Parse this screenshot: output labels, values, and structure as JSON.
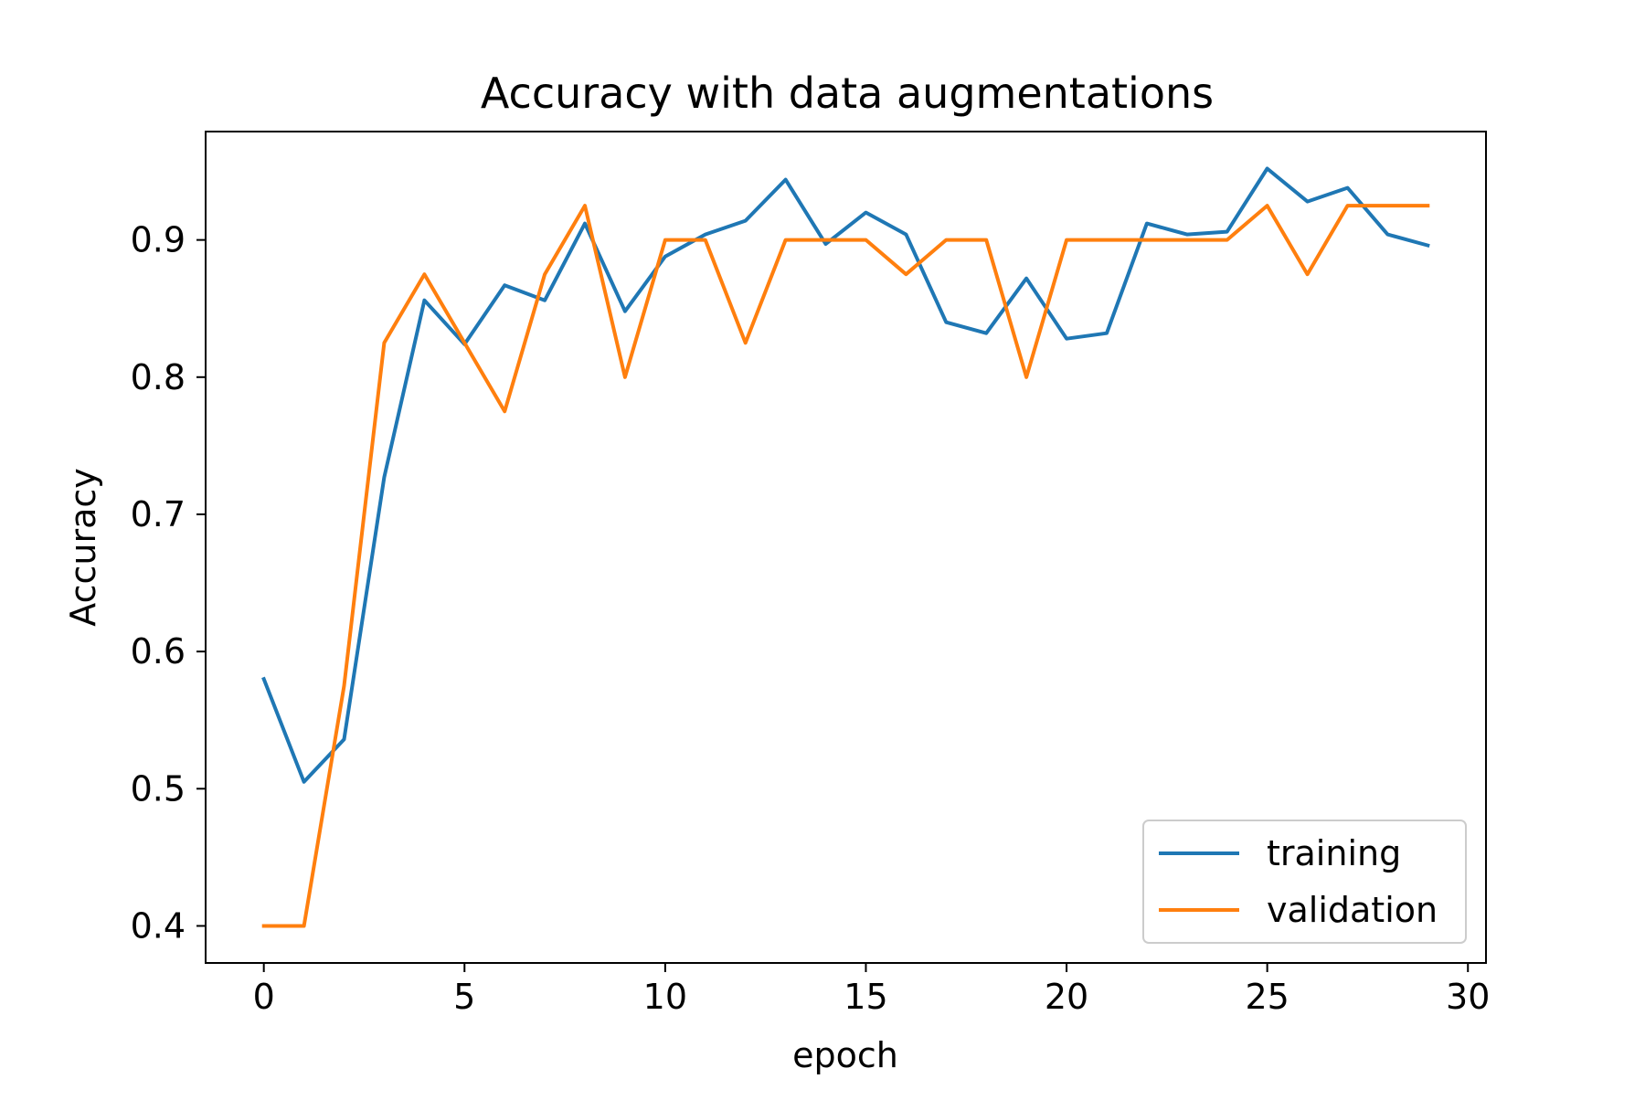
{
  "chart_data": {
    "type": "line",
    "title": "Accuracy with data augmentations",
    "xlabel": "epoch",
    "ylabel": "Accuracy",
    "xlim": [
      -1.45,
      30.45
    ],
    "ylim": [
      0.373,
      0.979
    ],
    "xticks": [
      0,
      5,
      10,
      15,
      20,
      25,
      30
    ],
    "xtick_labels": [
      "0",
      "5",
      "10",
      "15",
      "20",
      "25",
      "30"
    ],
    "yticks": [
      0.4,
      0.5,
      0.6,
      0.7,
      0.8,
      0.9
    ],
    "ytick_labels": [
      "0.4",
      "0.5",
      "0.6",
      "0.7",
      "0.8",
      "0.9"
    ],
    "grid": false,
    "legend_position": "lower-right",
    "x": [
      0,
      1,
      2,
      3,
      4,
      5,
      6,
      7,
      8,
      9,
      10,
      11,
      12,
      13,
      14,
      15,
      16,
      17,
      18,
      19,
      20,
      21,
      22,
      23,
      24,
      25,
      26,
      27,
      28,
      29
    ],
    "series": [
      {
        "name": "training",
        "color": "#1f77b4",
        "values": [
          0.58,
          0.505,
          0.536,
          0.727,
          0.856,
          0.824,
          0.867,
          0.856,
          0.912,
          0.848,
          0.888,
          0.904,
          0.914,
          0.944,
          0.897,
          0.92,
          0.904,
          0.84,
          0.832,
          0.872,
          0.828,
          0.832,
          0.912,
          0.904,
          0.906,
          0.952,
          0.928,
          0.938,
          0.904,
          0.896
        ]
      },
      {
        "name": "validation",
        "color": "#ff7f0e",
        "values": [
          0.4,
          0.4,
          0.575,
          0.825,
          0.875,
          0.825,
          0.775,
          0.875,
          0.925,
          0.8,
          0.9,
          0.9,
          0.825,
          0.9,
          0.9,
          0.9,
          0.875,
          0.9,
          0.9,
          0.8,
          0.9,
          0.9,
          0.9,
          0.9,
          0.9,
          0.925,
          0.875,
          0.925,
          0.925,
          0.925
        ]
      }
    ]
  }
}
